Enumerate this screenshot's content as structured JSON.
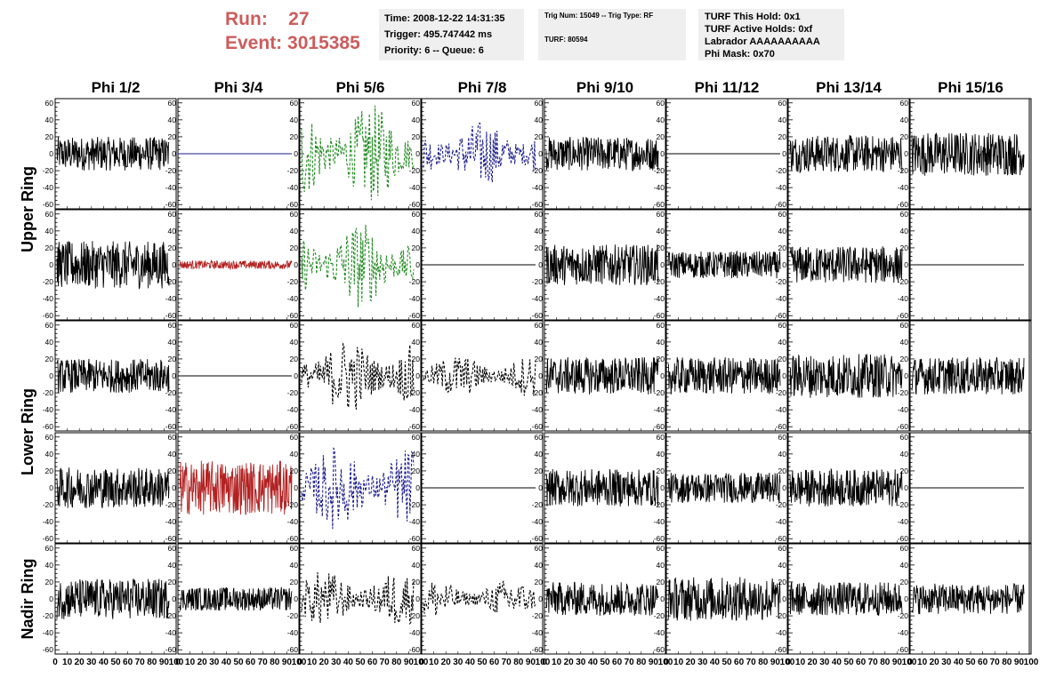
{
  "header": {
    "run_label": "Run:",
    "run_value": "27",
    "event_label": "Event:",
    "event_value": "3015385"
  },
  "info": {
    "time": "Time: 2008-12-22 14:31:35",
    "trigger": "Trigger: 495.747442 ms",
    "priority": "Priority: 6 -- Queue: 6",
    "trig_num": "Trig Num: 15049 -- Trig Type: RF",
    "turf": "TURF: 80594",
    "turf_hold": "TURF This Hold: 0x1",
    "turf_active": "TURF Active Holds: 0xf",
    "labrador": "Labrador AAAAAAAAAA",
    "phi_mask": "Phi Mask: 0x70"
  },
  "colors": {
    "black": "#000000",
    "red": "#b22222",
    "green": "#228b22",
    "blue": "#1c1c8c",
    "header_red": "#cd5c5c",
    "box_bg": "#efefef"
  },
  "chart_data": {
    "type": "line",
    "columns": [
      "Phi 1/2",
      "Phi 3/4",
      "Phi 5/6",
      "Phi 7/8",
      "Phi 9/10",
      "Phi 11/12",
      "Phi 13/14",
      "Phi 15/16"
    ],
    "row_labels": [
      {
        "label": "Upper Ring",
        "spans_rows": [
          0,
          1
        ]
      },
      {
        "label": "Lower Ring",
        "spans_rows": [
          2,
          3
        ]
      },
      {
        "label": "Nadir Ring",
        "spans_rows": [
          4
        ]
      }
    ],
    "ylim": [
      -65,
      65
    ],
    "yticks": [
      -60,
      -40,
      -20,
      0,
      20,
      40,
      60
    ],
    "xlim": [
      0,
      100
    ],
    "xtick_labels": [
      "0",
      "10",
      "20",
      "30",
      "40",
      "50",
      "60",
      "70",
      "80",
      "90",
      "100"
    ],
    "grid": false,
    "style_legend": {
      "s": "solid",
      "d": "dashed",
      "f": "flat line (zero signal)"
    },
    "panels": [
      [
        {
          "color": "black",
          "style": "s",
          "amplitude": 20
        },
        {
          "color": "blue",
          "style": "f",
          "amplitude": 0
        },
        {
          "color": "green",
          "style": "d",
          "amplitude": 45
        },
        {
          "color": "blue",
          "style": "d",
          "amplitude": 30
        },
        {
          "color": "black",
          "style": "s",
          "amplitude": 20
        },
        {
          "color": "black",
          "style": "f",
          "amplitude": 0
        },
        {
          "color": "black",
          "style": "s",
          "amplitude": 22
        },
        {
          "color": "black",
          "style": "s",
          "amplitude": 26
        }
      ],
      [
        {
          "color": "black",
          "style": "s",
          "amplitude": 28
        },
        {
          "color": "red",
          "style": "s",
          "amplitude": 5
        },
        {
          "color": "green",
          "style": "d",
          "amplitude": 40
        },
        {
          "color": "black",
          "style": "f",
          "amplitude": 0
        },
        {
          "color": "black",
          "style": "s",
          "amplitude": 24
        },
        {
          "color": "black",
          "style": "s",
          "amplitude": 16
        },
        {
          "color": "black",
          "style": "s",
          "amplitude": 22
        },
        {
          "color": "black",
          "style": "f",
          "amplitude": 0
        }
      ],
      [
        {
          "color": "black",
          "style": "s",
          "amplitude": 20
        },
        {
          "color": "black",
          "style": "f",
          "amplitude": 0
        },
        {
          "color": "black",
          "style": "d",
          "amplitude": 35
        },
        {
          "color": "black",
          "style": "d",
          "amplitude": 20
        },
        {
          "color": "black",
          "style": "s",
          "amplitude": 22
        },
        {
          "color": "black",
          "style": "s",
          "amplitude": 22
        },
        {
          "color": "black",
          "style": "s",
          "amplitude": 26
        },
        {
          "color": "black",
          "style": "s",
          "amplitude": 22
        }
      ],
      [
        {
          "color": "black",
          "style": "s",
          "amplitude": 24
        },
        {
          "color": "red",
          "style": "s",
          "amplitude": 32
        },
        {
          "color": "blue",
          "style": "d",
          "amplitude": 38
        },
        {
          "color": "black",
          "style": "f",
          "amplitude": 0
        },
        {
          "color": "black",
          "style": "s",
          "amplitude": 22
        },
        {
          "color": "black",
          "style": "s",
          "amplitude": 18
        },
        {
          "color": "black",
          "style": "s",
          "amplitude": 22
        },
        {
          "color": "black",
          "style": "f",
          "amplitude": 0
        }
      ],
      [
        {
          "color": "black",
          "style": "s",
          "amplitude": 24
        },
        {
          "color": "black",
          "style": "s",
          "amplitude": 14
        },
        {
          "color": "black",
          "style": "d",
          "amplitude": 26
        },
        {
          "color": "black",
          "style": "d",
          "amplitude": 18
        },
        {
          "color": "black",
          "style": "s",
          "amplitude": 20
        },
        {
          "color": "black",
          "style": "s",
          "amplitude": 26
        },
        {
          "color": "black",
          "style": "s",
          "amplitude": 20
        },
        {
          "color": "black",
          "style": "s",
          "amplitude": 18
        }
      ]
    ]
  }
}
